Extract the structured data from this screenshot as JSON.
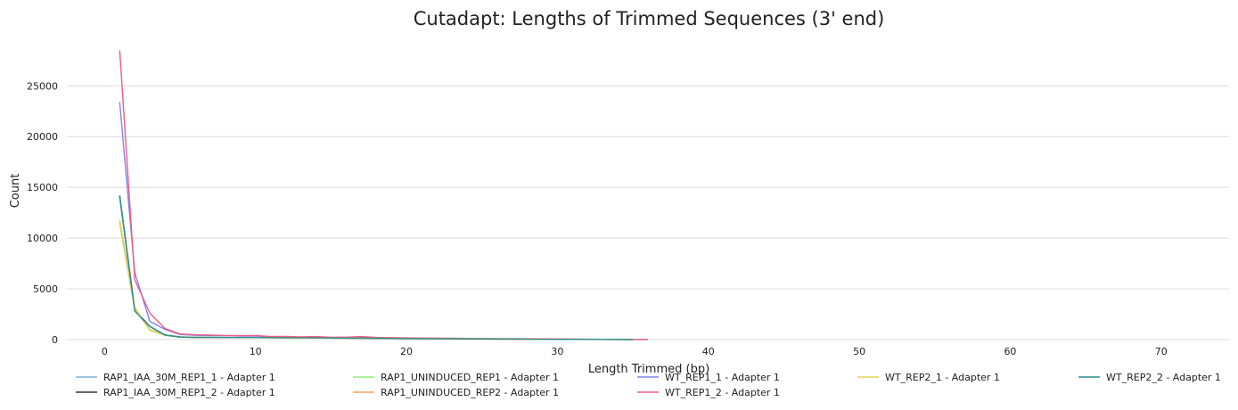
{
  "chart_data": {
    "type": "line",
    "title": "Cutadapt: Lengths of Trimmed Sequences (3' end)",
    "xlabel": "Length Trimmed (bp)",
    "ylabel": "Count",
    "xlim": [
      -2.5,
      74.5
    ],
    "ylim": [
      0,
      29500
    ],
    "xticks": [
      0,
      10,
      20,
      30,
      40,
      50,
      60,
      70
    ],
    "yticks": [
      0,
      5000,
      10000,
      15000,
      20000,
      25000
    ],
    "grid": "horizontal",
    "legend_position": "bottom",
    "series": [
      {
        "name": "RAP1_IAA_30M_REP1_1 - Adapter 1",
        "color": "#7fb2d9",
        "points": [
          [
            1,
            14100
          ],
          [
            2,
            2900
          ],
          [
            3,
            1300
          ],
          [
            4,
            450
          ],
          [
            5,
            250
          ],
          [
            6,
            220
          ],
          [
            8,
            200
          ],
          [
            10,
            200
          ],
          [
            12,
            180
          ],
          [
            14,
            170
          ],
          [
            16,
            150
          ],
          [
            18,
            130
          ],
          [
            20,
            100
          ],
          [
            25,
            60
          ],
          [
            30,
            30
          ],
          [
            35,
            10
          ]
        ]
      },
      {
        "name": "RAP1_IAA_30M_REP1_2 - Adapter 1",
        "color": "#333333",
        "points": [
          [
            1,
            14150
          ],
          [
            2,
            2900
          ],
          [
            3,
            1300
          ],
          [
            4,
            450
          ],
          [
            5,
            260
          ],
          [
            6,
            220
          ],
          [
            8,
            200
          ],
          [
            10,
            200
          ],
          [
            12,
            180
          ],
          [
            14,
            170
          ],
          [
            16,
            150
          ],
          [
            18,
            130
          ],
          [
            20,
            100
          ],
          [
            25,
            60
          ],
          [
            30,
            30
          ],
          [
            35,
            10
          ]
        ]
      },
      {
        "name": "RAP1_UNINDUCED_REP1 - Adapter 1",
        "color": "#90ed7d",
        "points": [
          [
            1,
            11500
          ],
          [
            2,
            3000
          ],
          [
            3,
            1000
          ],
          [
            4,
            420
          ],
          [
            5,
            240
          ],
          [
            6,
            210
          ],
          [
            8,
            190
          ],
          [
            10,
            190
          ],
          [
            12,
            170
          ],
          [
            14,
            160
          ],
          [
            16,
            140
          ],
          [
            18,
            120
          ],
          [
            20,
            90
          ],
          [
            25,
            55
          ],
          [
            30,
            25
          ],
          [
            35,
            8
          ]
        ]
      },
      {
        "name": "RAP1_UNINDUCED_REP2 - Adapter 1",
        "color": "#f7a35c",
        "points": [
          [
            1,
            11600
          ],
          [
            2,
            3000
          ],
          [
            3,
            950
          ],
          [
            4,
            420
          ],
          [
            5,
            240
          ],
          [
            6,
            210
          ],
          [
            8,
            190
          ],
          [
            10,
            190
          ],
          [
            12,
            170
          ],
          [
            14,
            160
          ],
          [
            16,
            140
          ],
          [
            18,
            120
          ],
          [
            20,
            90
          ],
          [
            25,
            55
          ],
          [
            30,
            25
          ],
          [
            35,
            8
          ]
        ]
      },
      {
        "name": "WT_REP1_1 - Adapter 1",
        "color": "#8085e9",
        "points": [
          [
            1,
            23400
          ],
          [
            2,
            6600
          ],
          [
            3,
            1800
          ],
          [
            4,
            1000
          ],
          [
            5,
            500
          ],
          [
            6,
            420
          ],
          [
            7,
            400
          ],
          [
            8,
            380
          ],
          [
            9,
            350
          ],
          [
            10,
            360
          ],
          [
            11,
            260
          ],
          [
            12,
            280
          ],
          [
            13,
            240
          ],
          [
            14,
            280
          ],
          [
            15,
            200
          ],
          [
            16,
            210
          ],
          [
            17,
            230
          ],
          [
            18,
            180
          ],
          [
            19,
            170
          ],
          [
            20,
            150
          ],
          [
            22,
            120
          ],
          [
            25,
            90
          ],
          [
            28,
            70
          ],
          [
            30,
            50
          ],
          [
            33,
            20
          ],
          [
            36,
            8
          ]
        ]
      },
      {
        "name": "WT_REP1_2 - Adapter 1",
        "color": "#f15c80",
        "points": [
          [
            1,
            28500
          ],
          [
            2,
            5900
          ],
          [
            3,
            2600
          ],
          [
            4,
            1100
          ],
          [
            5,
            550
          ],
          [
            6,
            470
          ],
          [
            7,
            450
          ],
          [
            8,
            400
          ],
          [
            9,
            380
          ],
          [
            10,
            400
          ],
          [
            11,
            300
          ],
          [
            12,
            320
          ],
          [
            13,
            270
          ],
          [
            14,
            300
          ],
          [
            15,
            230
          ],
          [
            16,
            240
          ],
          [
            17,
            300
          ],
          [
            18,
            210
          ],
          [
            19,
            190
          ],
          [
            20,
            170
          ],
          [
            22,
            140
          ],
          [
            25,
            100
          ],
          [
            28,
            80
          ],
          [
            30,
            60
          ],
          [
            33,
            25
          ],
          [
            36,
            10
          ]
        ]
      },
      {
        "name": "WT_REP2_1 - Adapter 1",
        "color": "#e4d354",
        "points": [
          [
            1,
            11800
          ],
          [
            2,
            3200
          ],
          [
            3,
            900
          ],
          [
            4,
            420
          ],
          [
            5,
            240
          ],
          [
            6,
            210
          ],
          [
            8,
            190
          ],
          [
            10,
            190
          ],
          [
            12,
            170
          ],
          [
            14,
            160
          ],
          [
            16,
            140
          ],
          [
            18,
            120
          ],
          [
            20,
            90
          ],
          [
            25,
            55
          ],
          [
            30,
            25
          ],
          [
            35,
            8
          ]
        ]
      },
      {
        "name": "WT_REP2_2 - Adapter 1",
        "color": "#2b908f",
        "points": [
          [
            1,
            14200
          ],
          [
            2,
            2800
          ],
          [
            3,
            1300
          ],
          [
            4,
            450
          ],
          [
            5,
            250
          ],
          [
            6,
            220
          ],
          [
            8,
            200
          ],
          [
            10,
            200
          ],
          [
            12,
            180
          ],
          [
            14,
            170
          ],
          [
            16,
            150
          ],
          [
            18,
            130
          ],
          [
            20,
            100
          ],
          [
            25,
            60
          ],
          [
            30,
            30
          ],
          [
            35,
            10
          ]
        ]
      }
    ]
  }
}
